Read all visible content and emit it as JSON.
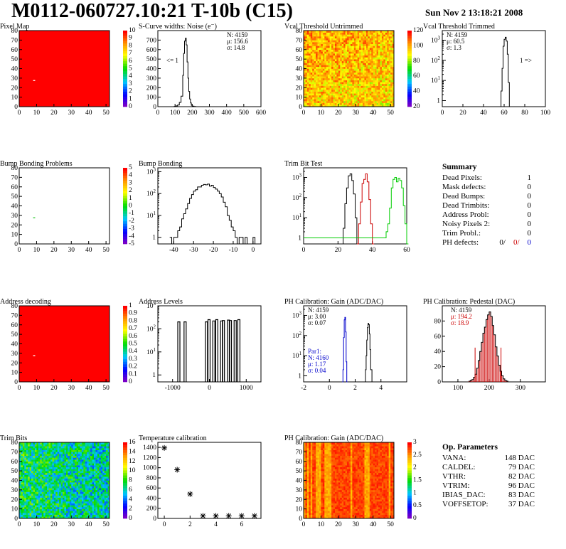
{
  "header": {
    "title": "M0112-060727.10:21 T-10b (C15)",
    "date": "Sun Nov  2 13:18:21 2008"
  },
  "chart_data": [
    {
      "id": "pixel-map",
      "type": "heatmap",
      "title": "Pixel Map",
      "xlim": [
        0,
        52
      ],
      "ylim": [
        0,
        80
      ],
      "xticks": [
        0,
        10,
        20,
        30,
        40,
        50
      ],
      "yticks": [
        0,
        10,
        20,
        30,
        40,
        50,
        60,
        70,
        80
      ],
      "zticks": [
        0,
        1,
        2,
        3,
        4,
        5,
        6,
        7,
        8,
        9,
        10
      ],
      "base": "#ff0000",
      "marks": [
        {
          "x": 8,
          "y": 27,
          "color": "#ffffff"
        }
      ]
    },
    {
      "id": "scurve",
      "type": "histogram",
      "title": "S-Curve widths: Noise (e⁻)",
      "xlim": [
        0,
        600
      ],
      "ylim": [
        0,
        800
      ],
      "xticks": [
        0,
        100,
        200,
        300,
        400,
        500,
        600
      ],
      "yticks": [
        0,
        100,
        200,
        300,
        400,
        500,
        600,
        700
      ],
      "stats": [
        "N: 4159",
        "μ: 156.6",
        "σ: 14.8"
      ],
      "annotation": "<= 1",
      "series": [
        {
          "color": "#000",
          "x": [
            85,
            95,
            105,
            115,
            125,
            135,
            145,
            150,
            155,
            160,
            165,
            170,
            175,
            180,
            185,
            190,
            195,
            200,
            210,
            220,
            230
          ],
          "y": [
            0,
            3,
            8,
            18,
            45,
            110,
            330,
            560,
            690,
            720,
            650,
            470,
            300,
            160,
            80,
            40,
            15,
            6,
            2,
            0,
            0
          ]
        }
      ]
    },
    {
      "id": "vcal-untrimmed",
      "type": "heatmap",
      "title": "Vcal Threshold Untrimmed",
      "xlim": [
        0,
        52
      ],
      "ylim": [
        0,
        80
      ],
      "xticks": [
        0,
        10,
        20,
        30,
        40,
        50
      ],
      "yticks": [
        0,
        10,
        20,
        30,
        40,
        50,
        60,
        70,
        80
      ],
      "zticks": [
        20,
        40,
        60,
        80,
        100,
        120
      ]
    },
    {
      "id": "vcal-trimmed",
      "type": "histogram",
      "log": true,
      "title": "Vcal Threshold Trimmed",
      "xlim": [
        0,
        100
      ],
      "ylim": [
        0.5,
        3000
      ],
      "xticks": [
        0,
        20,
        40,
        60,
        80,
        100
      ],
      "stats": [
        "N: 4159",
        "μ: 60.5",
        "σ:  1.3"
      ],
      "annotation": "1 =>",
      "series": [
        {
          "color": "#000",
          "x": [
            56,
            57,
            58,
            59,
            60,
            61,
            62,
            63,
            64,
            65
          ],
          "y": [
            0.5,
            3,
            40,
            500,
            1100,
            1400,
            900,
            200,
            8,
            0.5
          ]
        }
      ]
    },
    {
      "id": "bump-problems",
      "type": "heatmap",
      "title": "Bump Bonding Problems",
      "xlim": [
        0,
        52
      ],
      "ylim": [
        0,
        80
      ],
      "xticks": [
        0,
        10,
        20,
        30,
        40,
        50
      ],
      "yticks": [
        0,
        10,
        20,
        30,
        40,
        50,
        60,
        70,
        80
      ],
      "zticks": [
        -5,
        -4,
        -3,
        -2,
        -1,
        0,
        1,
        2,
        3,
        4,
        5
      ],
      "base": "#ffffff",
      "marks": [
        {
          "x": 8,
          "y": 27,
          "color": "#33cc33"
        }
      ]
    },
    {
      "id": "bump-bonding",
      "type": "histogram",
      "log": true,
      "title": "Bump Bonding",
      "xlim": [
        -48,
        4
      ],
      "ylim": [
        0.5,
        1500
      ],
      "xticks": [
        -40,
        -30,
        -20,
        -10,
        0
      ],
      "series": [
        {
          "color": "#000",
          "x": [
            -42,
            -41,
            -40,
            -39,
            -38,
            -37,
            -36,
            -35,
            -34,
            -33,
            -32,
            -31,
            -30,
            -29,
            -28,
            -27,
            -26,
            -25,
            -24,
            -23,
            -22,
            -21,
            -20,
            -19,
            -18,
            -17,
            -16,
            -15,
            -14,
            -13,
            -12,
            -11,
            -10,
            -9,
            -8,
            -7,
            -6,
            -5,
            -4,
            -3,
            -2,
            -1,
            0,
            1,
            2
          ],
          "y": [
            1,
            0.5,
            1,
            1,
            2,
            3,
            7,
            12,
            20,
            35,
            60,
            90,
            130,
            150,
            200,
            200,
            240,
            260,
            250,
            270,
            220,
            240,
            190,
            160,
            130,
            100,
            70,
            40,
            25,
            10,
            6,
            3,
            2,
            1,
            0.5,
            1,
            1,
            0.5,
            1,
            0.5,
            0.5,
            0.5,
            1,
            0.5,
            0.5
          ]
        }
      ]
    },
    {
      "id": "trim-bit-test",
      "type": "histogram",
      "log": true,
      "title": "Trim Bit Test",
      "xlim": [
        0,
        60
      ],
      "ylim": [
        0.5,
        3000
      ],
      "xticks": [
        0,
        20,
        40,
        60
      ],
      "series": [
        {
          "color": "#000",
          "x": [
            22,
            23,
            24,
            25,
            26,
            27,
            28,
            29,
            30,
            31
          ],
          "y": [
            0.5,
            3,
            50,
            300,
            1200,
            1500,
            700,
            150,
            10,
            0.5
          ]
        },
        {
          "color": "#cc0000",
          "x": [
            31,
            32,
            33,
            34,
            35,
            36,
            37,
            38,
            39,
            40
          ],
          "y": [
            0.5,
            5,
            60,
            500,
            800,
            1500,
            600,
            80,
            5,
            0.5
          ]
        },
        {
          "color": "#00cc00",
          "x": [
            0,
            1,
            45,
            46,
            47,
            48,
            49,
            50,
            51,
            52,
            53,
            54,
            55,
            56,
            57,
            58,
            59,
            60
          ],
          "y": [
            1,
            1,
            1,
            1,
            1,
            2,
            5,
            30,
            300,
            800,
            1000,
            600,
            900,
            700,
            300,
            40,
            5,
            0.5
          ]
        }
      ]
    },
    {
      "id": "address-decoding",
      "type": "heatmap",
      "title": "Address decoding",
      "xlim": [
        0,
        52
      ],
      "ylim": [
        0,
        80
      ],
      "xticks": [
        0,
        10,
        20,
        30,
        40,
        50
      ],
      "yticks": [
        0,
        10,
        20,
        30,
        40,
        50,
        60,
        70,
        80
      ],
      "zticks": [
        0,
        0.1,
        0.2,
        0.3,
        0.4,
        0.5,
        0.6,
        0.7,
        0.8,
        0.9,
        1
      ],
      "base": "#ff0000",
      "marks": [
        {
          "x": 8,
          "y": 27,
          "color": "#ffffff"
        }
      ]
    },
    {
      "id": "address-levels",
      "type": "histogram",
      "log": true,
      "title": "Address Levels",
      "xlim": [
        -1400,
        1400
      ],
      "ylim": [
        0.5,
        1000
      ],
      "xticks": [
        -1000,
        0,
        1000
      ],
      "series": [
        {
          "color": "#000",
          "spikes": [
            [
              -830,
              200
            ],
            [
              -660,
              200
            ],
            [
              -80,
              200
            ],
            [
              -10,
              250
            ],
            [
              120,
              220
            ],
            [
              200,
              250
            ],
            [
              330,
              220
            ],
            [
              380,
              230
            ],
            [
              520,
              240
            ],
            [
              570,
              230
            ],
            [
              700,
              230
            ],
            [
              800,
              250
            ]
          ]
        }
      ]
    },
    {
      "id": "ph-gain",
      "type": "histogram",
      "log": true,
      "title": "PH Calibration: Gain (ADC/DAC)",
      "xlim": [
        -2,
        6
      ],
      "ylim": [
        0.5,
        3000
      ],
      "xticks": [
        -2,
        0,
        2,
        4
      ],
      "stats": [
        "N: 4159",
        "μ: 3.00",
        "σ: 0.07"
      ],
      "stats2": [
        "Par1:",
        "N: 4160",
        "μ: 1.17",
        "σ: 0.04"
      ],
      "series": [
        {
          "color": "#0000cc",
          "x": [
            1.0,
            1.05,
            1.1,
            1.15,
            1.2,
            1.25,
            1.3,
            1.35
          ],
          "y": [
            0.5,
            2,
            80,
            600,
            800,
            150,
            5,
            0.5
          ]
        },
        {
          "color": "#000",
          "x": [
            2.7,
            2.8,
            2.85,
            2.9,
            2.95,
            3.0,
            3.05,
            3.1,
            3.15,
            3.2,
            3.3
          ],
          "y": [
            0.5,
            2,
            10,
            60,
            250,
            400,
            350,
            120,
            20,
            2,
            0.5
          ]
        }
      ]
    },
    {
      "id": "ph-pedestal",
      "type": "histogram",
      "title": "PH Calibration: Pedestal (DAC)",
      "xlim": [
        50,
        380
      ],
      "ylim": [
        0,
        100
      ],
      "xticks": [
        100,
        200,
        300
      ],
      "yticks": [
        0,
        20,
        40,
        60,
        80
      ],
      "stats": [
        "N: 4159",
        "μ: 194.2",
        "σ: 18.9"
      ],
      "cuts": [
        155,
        238
      ],
      "series": [
        {
          "color": "#000",
          "fill": "#cc0000",
          "x": [
            135,
            140,
            145,
            150,
            155,
            160,
            165,
            170,
            175,
            180,
            185,
            190,
            195,
            200,
            205,
            210,
            215,
            220,
            225,
            230,
            235,
            240,
            245,
            250,
            255,
            260
          ],
          "y": [
            1,
            2,
            3,
            6,
            10,
            18,
            28,
            40,
            52,
            64,
            72,
            82,
            88,
            92,
            86,
            74,
            62,
            46,
            34,
            22,
            14,
            8,
            4,
            2,
            1,
            0
          ]
        }
      ]
    },
    {
      "id": "trim-bits",
      "type": "heatmap",
      "title": "Trim Bits",
      "xlim": [
        0,
        52
      ],
      "ylim": [
        0,
        80
      ],
      "xticks": [
        0,
        10,
        20,
        30,
        40,
        50
      ],
      "yticks": [
        0,
        10,
        20,
        30,
        40,
        50,
        60,
        70,
        80
      ],
      "zticks": [
        0,
        2,
        4,
        6,
        8,
        10,
        12,
        14,
        16
      ]
    },
    {
      "id": "temperature",
      "type": "scatter",
      "title": "Temperature calibration",
      "xlim": [
        -0.5,
        7.5
      ],
      "ylim": [
        0,
        1500
      ],
      "xticks": [
        0,
        2,
        4,
        6
      ],
      "yticks": [
        0,
        200,
        400,
        600,
        800,
        1000,
        1200,
        1400
      ],
      "x": [
        0,
        1,
        2,
        3,
        4,
        5,
        6,
        7
      ],
      "y": [
        1390,
        960,
        480,
        50,
        50,
        50,
        50,
        50
      ]
    },
    {
      "id": "ph-gain-map",
      "type": "heatmap",
      "title": "PH Calibration: Gain (ADC/DAC)",
      "xlim": [
        0,
        52
      ],
      "ylim": [
        0,
        80
      ],
      "xticks": [
        0,
        10,
        20,
        30,
        40,
        50
      ],
      "yticks": [
        0,
        10,
        20,
        30,
        40,
        50,
        60,
        70,
        80
      ],
      "zticks": [
        0,
        0.5,
        1,
        1.5,
        2,
        2.5,
        3
      ]
    }
  ],
  "summary": {
    "title": "Summary",
    "rows": [
      {
        "label": "Dead Pixels:",
        "value": "1"
      },
      {
        "label": "Mask defects:",
        "value": "0"
      },
      {
        "label": "Dead Bumps:",
        "value": "0"
      },
      {
        "label": "Dead Trimbits:",
        "value": "0"
      },
      {
        "label": "Address Probl:",
        "value": "0"
      },
      {
        "label": "Noisy Pixels 2:",
        "value": "0"
      },
      {
        "label": "Trim Probl.:",
        "value": "0"
      }
    ],
    "ph_label": "PH defects:",
    "ph_values": [
      {
        "v": "0/",
        "c": "#000"
      },
      {
        "v": "0/",
        "c": "#cc0000"
      },
      {
        "v": "0",
        "c": "#0000cc"
      }
    ]
  },
  "opparams": {
    "title": "Op. Parameters",
    "rows": [
      {
        "label": "VANA:",
        "value": "148 DAC"
      },
      {
        "label": "CALDEL:",
        "value": "79 DAC"
      },
      {
        "label": "VTHR:",
        "value": "82 DAC"
      },
      {
        "label": "VTRIM:",
        "value": "96 DAC"
      },
      {
        "label": "IBIAS_DAC:",
        "value": "83 DAC"
      },
      {
        "label": "VOFFSETOP:",
        "value": "37 DAC"
      }
    ]
  }
}
